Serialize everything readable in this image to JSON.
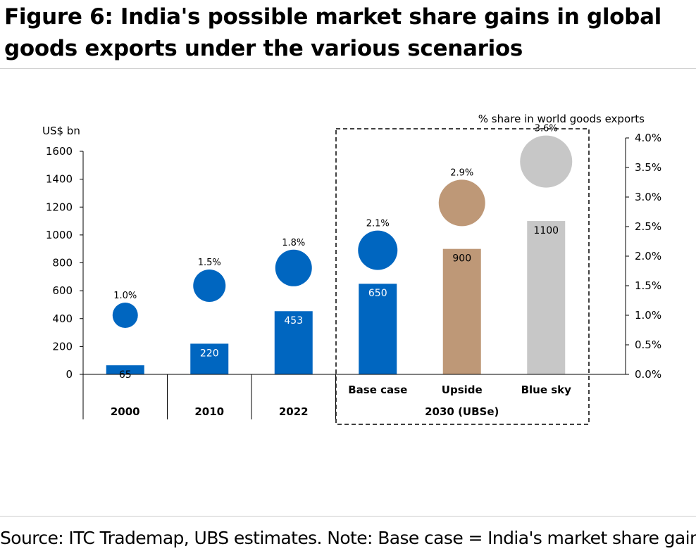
{
  "figure": {
    "title": "Figure 6: India's possible market share gains in global goods exports under the various scenarios",
    "source": "Source: ITC Trademap, UBS estimates. Note: Base case = India's market share gains"
  },
  "chart_data": {
    "type": "bar",
    "categories": [
      "2000",
      "2010",
      "2022",
      "Base case",
      "Upside",
      "Blue sky"
    ],
    "group_label": "2030 (UBSe)",
    "y_left": {
      "label": "US$ bn",
      "range": [
        0,
        1600
      ],
      "ticks": [
        0,
        200,
        400,
        600,
        800,
        1000,
        1200,
        1400,
        1600
      ]
    },
    "y_right": {
      "label": "% share in world goods exports",
      "range": [
        0,
        4.0
      ],
      "ticks": [
        "0.0%",
        "0.5%",
        "1.0%",
        "1.5%",
        "2.0%",
        "2.5%",
        "3.0%",
        "3.5%",
        "4.0%"
      ]
    },
    "series": [
      {
        "values": [
          65,
          220,
          453,
          650,
          900,
          1100
        ],
        "labels": [
          "65",
          "220",
          "453",
          "650",
          "900",
          "1100"
        ]
      },
      {
        "values": [
          1.0,
          1.5,
          1.8,
          2.1,
          2.9,
          3.6
        ],
        "labels": [
          "1.0%",
          "1.5%",
          "1.8%",
          "2.1%",
          "2.9%",
          "3.6%"
        ]
      }
    ],
    "colors": {
      "blue": "#0066c0",
      "tan": "#be9877",
      "grey": "#c7c7c7"
    },
    "point_colors": [
      "#0066c0",
      "#0066c0",
      "#0066c0",
      "#0066c0",
      "#be9877",
      "#c7c7c7"
    ],
    "bubble_sizes": [
      36,
      46,
      52,
      56,
      66,
      74
    ],
    "value_label_colors": [
      "#000000",
      "#ffffff",
      "#ffffff",
      "#ffffff",
      "#000000",
      "#000000"
    ],
    "grid": false,
    "scenario_box": "dashed"
  }
}
